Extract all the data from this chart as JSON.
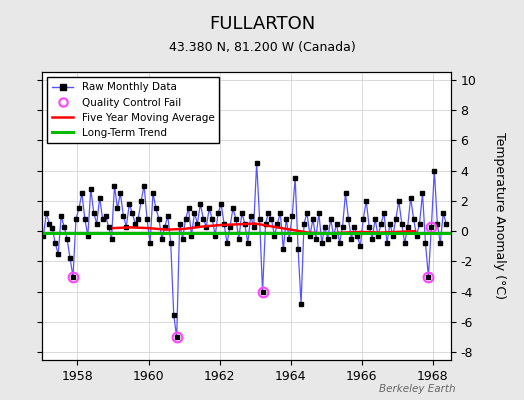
{
  "title": "FULLARTON",
  "subtitle": "43.380 N, 81.200 W (Canada)",
  "ylabel": "Temperature Anomaly (°C)",
  "xlim": [
    1957.0,
    1968.5
  ],
  "ylim": [
    -8.5,
    10.5
  ],
  "yticks": [
    -8,
    -6,
    -4,
    -2,
    0,
    2,
    4,
    6,
    8,
    10
  ],
  "xticks": [
    1958,
    1960,
    1962,
    1964,
    1966,
    1968
  ],
  "watermark": "Berkeley Earth",
  "background_color": "#e8e8e8",
  "plot_bg_color": "#ffffff",
  "raw_line_color": "#5555ff",
  "raw_marker_color": "#000000",
  "qc_fail_color": "#ff44ff",
  "moving_avg_color": "#ff0000",
  "trend_color": "#00bb00",
  "raw_monthly_data": [
    [
      1957.042,
      -0.3
    ],
    [
      1957.125,
      1.2
    ],
    [
      1957.208,
      0.5
    ],
    [
      1957.292,
      0.2
    ],
    [
      1957.375,
      -0.8
    ],
    [
      1957.458,
      -1.5
    ],
    [
      1957.542,
      1.0
    ],
    [
      1957.625,
      0.3
    ],
    [
      1957.708,
      -0.5
    ],
    [
      1957.792,
      -1.8
    ],
    [
      1957.875,
      -3.0
    ],
    [
      1957.958,
      0.8
    ],
    [
      1958.042,
      1.5
    ],
    [
      1958.125,
      2.5
    ],
    [
      1958.208,
      0.8
    ],
    [
      1958.292,
      -0.3
    ],
    [
      1958.375,
      2.8
    ],
    [
      1958.458,
      1.2
    ],
    [
      1958.542,
      0.5
    ],
    [
      1958.625,
      2.2
    ],
    [
      1958.708,
      0.8
    ],
    [
      1958.792,
      1.0
    ],
    [
      1958.875,
      0.3
    ],
    [
      1958.958,
      -0.5
    ],
    [
      1959.042,
      3.0
    ],
    [
      1959.125,
      1.5
    ],
    [
      1959.208,
      2.5
    ],
    [
      1959.292,
      1.0
    ],
    [
      1959.375,
      0.3
    ],
    [
      1959.458,
      1.8
    ],
    [
      1959.542,
      1.2
    ],
    [
      1959.625,
      0.5
    ],
    [
      1959.708,
      0.8
    ],
    [
      1959.792,
      2.0
    ],
    [
      1959.875,
      3.0
    ],
    [
      1959.958,
      0.8
    ],
    [
      1960.042,
      -0.8
    ],
    [
      1960.125,
      2.5
    ],
    [
      1960.208,
      1.5
    ],
    [
      1960.292,
      0.8
    ],
    [
      1960.375,
      -0.5
    ],
    [
      1960.458,
      0.3
    ],
    [
      1960.542,
      1.0
    ],
    [
      1960.625,
      -0.8
    ],
    [
      1960.708,
      -5.5
    ],
    [
      1960.792,
      -7.0
    ],
    [
      1960.875,
      0.5
    ],
    [
      1960.958,
      -0.5
    ],
    [
      1961.042,
      0.8
    ],
    [
      1961.125,
      1.5
    ],
    [
      1961.208,
      -0.3
    ],
    [
      1961.292,
      1.2
    ],
    [
      1961.375,
      0.5
    ],
    [
      1961.458,
      1.8
    ],
    [
      1961.542,
      0.8
    ],
    [
      1961.625,
      0.3
    ],
    [
      1961.708,
      1.5
    ],
    [
      1961.792,
      0.8
    ],
    [
      1961.875,
      -0.3
    ],
    [
      1961.958,
      1.2
    ],
    [
      1962.042,
      1.8
    ],
    [
      1962.125,
      0.5
    ],
    [
      1962.208,
      -0.8
    ],
    [
      1962.292,
      0.3
    ],
    [
      1962.375,
      1.5
    ],
    [
      1962.458,
      0.8
    ],
    [
      1962.542,
      -0.5
    ],
    [
      1962.625,
      1.2
    ],
    [
      1962.708,
      0.5
    ],
    [
      1962.792,
      -0.8
    ],
    [
      1962.875,
      1.0
    ],
    [
      1962.958,
      0.3
    ],
    [
      1963.042,
      4.5
    ],
    [
      1963.125,
      0.8
    ],
    [
      1963.208,
      -4.0
    ],
    [
      1963.292,
      0.5
    ],
    [
      1963.375,
      1.2
    ],
    [
      1963.458,
      0.8
    ],
    [
      1963.542,
      -0.3
    ],
    [
      1963.625,
      0.5
    ],
    [
      1963.708,
      1.2
    ],
    [
      1963.792,
      -1.2
    ],
    [
      1963.875,
      0.8
    ],
    [
      1963.958,
      -0.5
    ],
    [
      1964.042,
      1.0
    ],
    [
      1964.125,
      3.5
    ],
    [
      1964.208,
      -1.2
    ],
    [
      1964.292,
      -4.8
    ],
    [
      1964.375,
      0.5
    ],
    [
      1964.458,
      1.2
    ],
    [
      1964.542,
      -0.3
    ],
    [
      1964.625,
      0.8
    ],
    [
      1964.708,
      -0.5
    ],
    [
      1964.792,
      1.2
    ],
    [
      1964.875,
      -0.8
    ],
    [
      1964.958,
      0.3
    ],
    [
      1965.042,
      -0.5
    ],
    [
      1965.125,
      0.8
    ],
    [
      1965.208,
      -0.3
    ],
    [
      1965.292,
      0.5
    ],
    [
      1965.375,
      -0.8
    ],
    [
      1965.458,
      0.3
    ],
    [
      1965.542,
      2.5
    ],
    [
      1965.625,
      0.8
    ],
    [
      1965.708,
      -0.5
    ],
    [
      1965.792,
      0.3
    ],
    [
      1965.875,
      -0.3
    ],
    [
      1965.958,
      -1.0
    ],
    [
      1966.042,
      0.8
    ],
    [
      1966.125,
      2.0
    ],
    [
      1966.208,
      0.3
    ],
    [
      1966.292,
      -0.5
    ],
    [
      1966.375,
      0.8
    ],
    [
      1966.458,
      -0.3
    ],
    [
      1966.542,
      0.5
    ],
    [
      1966.625,
      1.2
    ],
    [
      1966.708,
      -0.8
    ],
    [
      1966.792,
      0.5
    ],
    [
      1966.875,
      -0.3
    ],
    [
      1966.958,
      0.8
    ],
    [
      1967.042,
      2.0
    ],
    [
      1967.125,
      0.5
    ],
    [
      1967.208,
      -0.8
    ],
    [
      1967.292,
      0.3
    ],
    [
      1967.375,
      2.2
    ],
    [
      1967.458,
      0.8
    ],
    [
      1967.542,
      -0.3
    ],
    [
      1967.625,
      0.5
    ],
    [
      1967.708,
      2.5
    ],
    [
      1967.792,
      -0.8
    ],
    [
      1967.875,
      -3.0
    ],
    [
      1967.958,
      0.3
    ],
    [
      1968.042,
      4.0
    ],
    [
      1968.125,
      0.5
    ],
    [
      1968.208,
      -0.8
    ],
    [
      1968.292,
      1.2
    ],
    [
      1968.375,
      0.5
    ]
  ],
  "qc_fail_points": [
    [
      1957.875,
      -3.0
    ],
    [
      1960.792,
      -7.0
    ],
    [
      1963.208,
      -4.0
    ],
    [
      1967.875,
      -3.0
    ],
    [
      1967.958,
      0.3
    ]
  ],
  "moving_avg": [
    [
      1959.0,
      0.2
    ],
    [
      1959.5,
      0.25
    ],
    [
      1960.0,
      0.2
    ],
    [
      1960.5,
      0.1
    ],
    [
      1961.0,
      0.15
    ],
    [
      1961.5,
      0.3
    ],
    [
      1962.0,
      0.4
    ],
    [
      1962.5,
      0.45
    ],
    [
      1963.0,
      0.5
    ],
    [
      1963.5,
      0.3
    ],
    [
      1964.0,
      0.1
    ],
    [
      1964.5,
      -0.1
    ],
    [
      1965.0,
      -0.15
    ],
    [
      1965.5,
      -0.1
    ],
    [
      1966.0,
      -0.05
    ],
    [
      1966.5,
      -0.1
    ],
    [
      1967.0,
      -0.05
    ],
    [
      1967.5,
      0.0
    ]
  ],
  "trend_x": [
    1957.0,
    1968.5
  ],
  "trend_y": [
    -0.15,
    -0.15
  ]
}
